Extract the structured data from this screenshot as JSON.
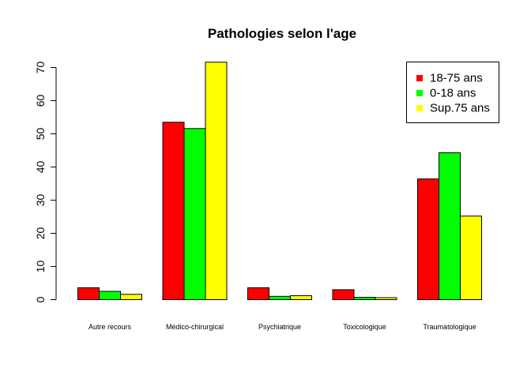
{
  "chart_data": {
    "type": "bar",
    "title": "Pathologies selon l'age",
    "xlabel": "",
    "ylabel": "",
    "categories": [
      "Autre recours",
      "Médico-chirurgical",
      "Psychiatrique",
      "Toxicologique",
      "Traumatologique"
    ],
    "series": [
      {
        "name": "18-75 ans",
        "color": "#ff0000",
        "values": [
          3.6,
          53.5,
          3.6,
          3.0,
          36.4
        ]
      },
      {
        "name": "0-18 ans",
        "color": "#00ff00",
        "values": [
          2.5,
          51.6,
          1.0,
          0.7,
          44.3
        ]
      },
      {
        "name": "Sup.75 ans",
        "color": "#ffff00",
        "values": [
          1.6,
          71.6,
          1.2,
          0.6,
          25.2
        ]
      }
    ],
    "ylim": [
      0,
      70
    ],
    "yticks": [
      "0",
      "10",
      "20",
      "30",
      "40",
      "50",
      "60",
      "70"
    ],
    "grid": false,
    "legend_position": "top-right"
  }
}
